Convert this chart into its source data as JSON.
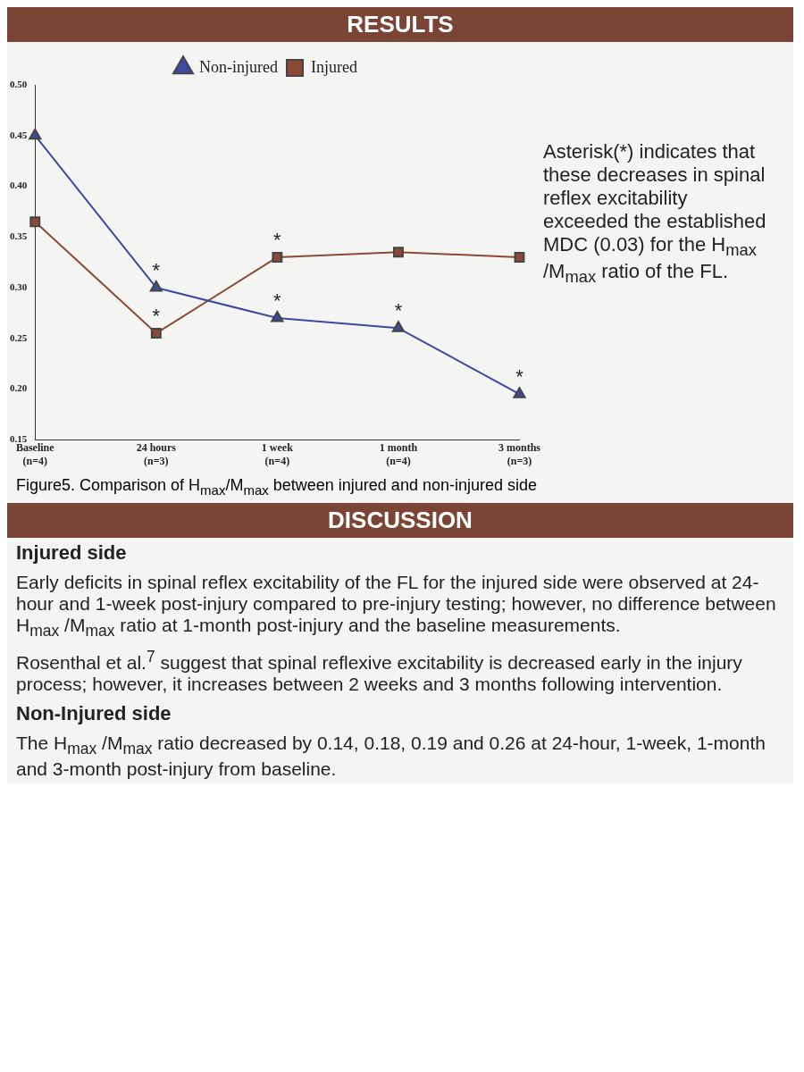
{
  "chart_data": {
    "type": "line",
    "title": "RESULTS",
    "categories": [
      "Baseline (n=4)",
      "24 hours (n=3)",
      "1 week (n=4)",
      "1 month (n=4)",
      "3 months (n=3)"
    ],
    "series": [
      {
        "name": "Non-injured",
        "color": "#3d4aa0",
        "marker": "triangle",
        "values": [
          0.45,
          0.3,
          0.27,
          0.26,
          0.195
        ]
      },
      {
        "name": "Injured",
        "color": "#8b4a35",
        "marker": "square",
        "values": [
          0.365,
          0.255,
          0.33,
          0.335,
          0.33
        ]
      }
    ],
    "ylim": [
      0.15,
      0.5
    ],
    "yticks": [
      {
        "value": 0.15,
        "label": "0.15"
      },
      {
        "value": 0.2,
        "label": "0.20"
      },
      {
        "value": 0.25,
        "label": "0.25"
      },
      {
        "value": 0.3,
        "label": "0.30"
      },
      {
        "value": 0.35,
        "label": "0.35"
      },
      {
        "value": 0.4,
        "label": "0.40"
      },
      {
        "value": 0.45,
        "label": "0.45"
      },
      {
        "value": 0.5,
        "label": "0.50"
      }
    ],
    "grid": false,
    "legend": "top",
    "line_style": "solid",
    "annotations": [
      {
        "text": "*",
        "x": "24 hours (n=3)",
        "y": 0.3
      },
      {
        "text": "*",
        "x": "24 hours (n=3)",
        "y": 0.255
      },
      {
        "text": "*",
        "x": "1 week (n=4)",
        "y": 0.33
      },
      {
        "text": "*",
        "x": "1 week (n=4)",
        "y": 0.27
      },
      {
        "text": "*",
        "x": "1 month (n=4)",
        "y": 0.26
      },
      {
        "text": "*",
        "x": "3 months (n=3)",
        "y": 0.195
      },
      "Asterisk(*) indicates that these decreases in spinal reflex excitability exceeded the established MDC (0.03) for the H$_{max}$ /M$_{max}$ ratio of the FL.",
      "Figure5. Comparison of H$_{max}$/M$_{max}$ between injured and non-injured side",
      "DISCUSSION",
      "Injured side",
      "Early deficits in spinal reflex excitability of the FL for the injured side were observed at 24-hour and 1-week post-injury compared to pre-injury testing; however, no difference between H$_{max}$ /M$_{max}$ ratio at 1-month post-injury and the baseline measurements.",
      "Rosenthal et al.$^{7}$ suggest that spinal reflexive excitability is decreased early in the injury process; however, it increases between 2 weeks and 3 months following intervention.",
      "Non-Injured side",
      "The H$_{max}$ /M$_{max}$ ratio decreased by 0.14, 0.18, 0.19 and 0.26 at 24-hour, 1-week, 1-month and 3-month post-injury from baseline."
    ]
  }
}
